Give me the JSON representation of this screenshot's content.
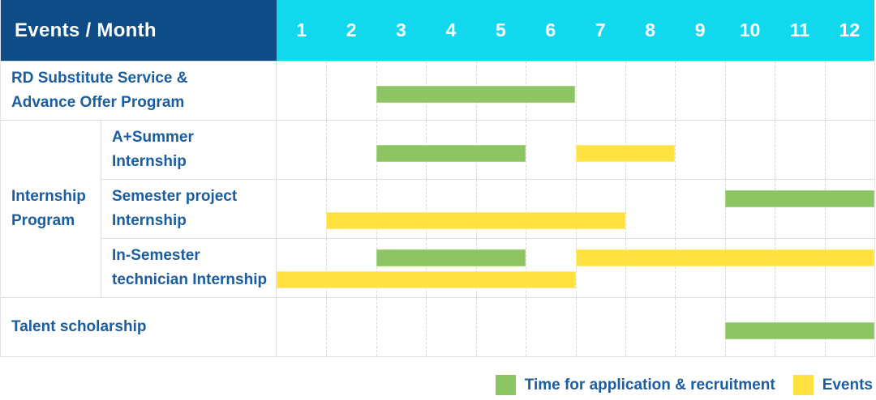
{
  "title": "Events / Month",
  "months": [
    "1",
    "2",
    "3",
    "4",
    "5",
    "6",
    "7",
    "8",
    "9",
    "10",
    "11",
    "12"
  ],
  "colors": {
    "header_bg": "#0d4c86",
    "months_bg": "#12d8ee",
    "green": "#8dc464",
    "yellow": "#ffe23f",
    "label_text": "#1a5da0",
    "grid_line": "#dedede"
  },
  "rows": {
    "rd": {
      "lines": [
        "RD Substitute Service &",
        "Advance Offer Program"
      ]
    },
    "group": {
      "lines": [
        "Internship",
        "Program"
      ]
    },
    "sub1": {
      "lines": [
        "A+Summer",
        "Internship"
      ]
    },
    "sub2": {
      "lines": [
        "Semester project",
        "Internship"
      ]
    },
    "sub3": {
      "lines": [
        "In-Semester",
        "technician Internship"
      ]
    },
    "talent": {
      "lines": [
        "Talent scholarship"
      ]
    }
  },
  "legend": {
    "items": [
      {
        "label": "Time for application & recruitment",
        "color_key": "green"
      },
      {
        "label": "Events",
        "color_key": "yellow"
      }
    ]
  },
  "chart_data": {
    "type": "bar",
    "subtype": "gantt-timeline",
    "title": "Events / Month",
    "x_axis": {
      "label": "Month",
      "categories": [
        1,
        2,
        3,
        4,
        5,
        6,
        7,
        8,
        9,
        10,
        11,
        12
      ]
    },
    "legend_position": "bottom-right",
    "grid": "dashed-vertical",
    "series_legend": [
      {
        "name": "Time for application & recruitment",
        "color": "#8dc464"
      },
      {
        "name": "Events",
        "color": "#ffe23f"
      }
    ],
    "row_lanes": {
      "1": 1,
      "2": 1,
      "3": 2,
      "4": 2,
      "5": 1
    },
    "rows": [
      {
        "row": 1,
        "group": null,
        "label": "RD Substitute Service & Advance Offer Program"
      },
      {
        "row": 2,
        "group": "Internship Program",
        "label": "A+Summer Internship"
      },
      {
        "row": 3,
        "group": "Internship Program",
        "label": "Semester project Internship"
      },
      {
        "row": 4,
        "group": "Internship Program",
        "label": "In-Semester technician Internship"
      },
      {
        "row": 5,
        "group": null,
        "label": "Talent scholarship"
      }
    ],
    "bars": [
      {
        "row": 1,
        "series": "Time for application & recruitment",
        "color": "green",
        "start_month": 3,
        "end_month": 6,
        "lane": 0
      },
      {
        "row": 2,
        "series": "Time for application & recruitment",
        "color": "green",
        "start_month": 3,
        "end_month": 5,
        "lane": 0
      },
      {
        "row": 2,
        "series": "Events",
        "color": "yellow",
        "start_month": 7,
        "end_month": 8,
        "lane": 0
      },
      {
        "row": 3,
        "series": "Time for application & recruitment",
        "color": "green",
        "start_month": 10,
        "end_month": 12,
        "lane": 0
      },
      {
        "row": 3,
        "series": "Events",
        "color": "yellow",
        "start_month": 2,
        "end_month": 7,
        "lane": 1
      },
      {
        "row": 4,
        "series": "Time for application & recruitment",
        "color": "green",
        "start_month": 3,
        "end_month": 5,
        "lane": 0
      },
      {
        "row": 4,
        "series": "Events",
        "color": "yellow",
        "start_month": 7,
        "end_month": 12,
        "lane": 0
      },
      {
        "row": 4,
        "series": "Events",
        "color": "yellow",
        "start_month": 1,
        "end_month": 6,
        "lane": 1
      },
      {
        "row": 5,
        "series": "Time for application & recruitment",
        "color": "green",
        "start_month": 10,
        "end_month": 12,
        "lane": 0
      }
    ]
  }
}
